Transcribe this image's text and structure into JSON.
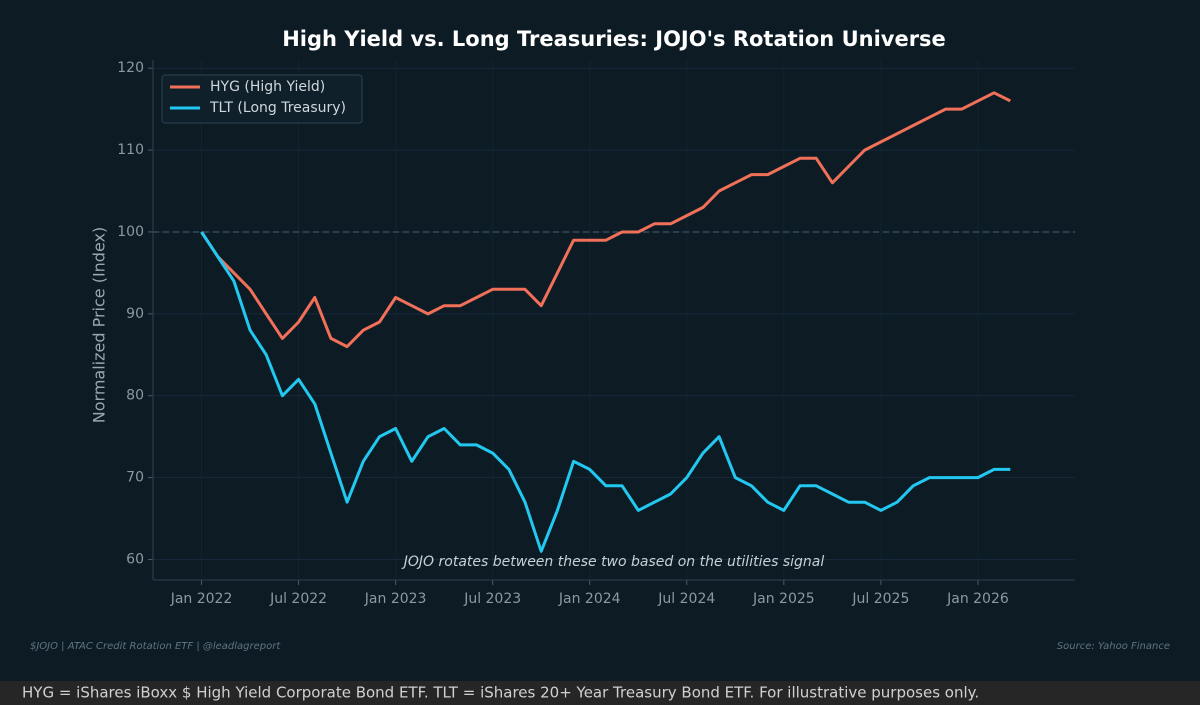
{
  "chart_data": {
    "type": "line",
    "title": "High Yield vs. Long Treasuries: JOJO's Rotation Universe",
    "y_label": "Normalized Price (Index)",
    "annotation": "JOJO rotates between these two based on the utilities signal",
    "footer_left": "$JOJO  |  ATAC Credit Rotation ETF  |  @leadlagreport",
    "source": "Source: Yahoo Finance",
    "disclaimer": "HYG = iShares iBoxx $ High Yield Corporate Bond ETF. TLT = iShares 20+ Year Treasury Bond ETF. For illustrative purposes only.",
    "x": [
      "2022-01",
      "2022-02",
      "2022-03",
      "2022-04",
      "2022-05",
      "2022-06",
      "2022-07",
      "2022-08",
      "2022-09",
      "2022-10",
      "2022-11",
      "2022-12",
      "2023-01",
      "2023-02",
      "2023-03",
      "2023-04",
      "2023-05",
      "2023-06",
      "2023-07",
      "2023-08",
      "2023-09",
      "2023-10",
      "2023-11",
      "2023-12",
      "2024-01",
      "2024-02",
      "2024-03",
      "2024-04",
      "2024-05",
      "2024-06",
      "2024-07",
      "2024-08",
      "2024-09",
      "2024-10",
      "2024-11",
      "2024-12",
      "2025-01",
      "2025-02",
      "2025-03",
      "2025-04",
      "2025-05",
      "2025-06",
      "2025-07",
      "2025-08",
      "2025-09",
      "2025-10",
      "2025-11",
      "2025-12",
      "2026-01",
      "2026-02",
      "2026-03"
    ],
    "series": [
      {
        "name": "HYG (High Yield)",
        "color": "#f0705a",
        "values": [
          100,
          97,
          95,
          93,
          90,
          87,
          89,
          92,
          87,
          86,
          88,
          89,
          92,
          91,
          90,
          91,
          91,
          92,
          93,
          93,
          93,
          91,
          95,
          99,
          99,
          99,
          100,
          100,
          101,
          101,
          102,
          103,
          105,
          106,
          107,
          107,
          108,
          109,
          109,
          106,
          108,
          110,
          111,
          112,
          113,
          114,
          115,
          115,
          116,
          117,
          116
        ]
      },
      {
        "name": "TLT (Long Treasury)",
        "color": "#22c8f0",
        "values": [
          100,
          97,
          94,
          88,
          85,
          80,
          82,
          79,
          73,
          67,
          72,
          75,
          76,
          72,
          75,
          76,
          74,
          74,
          73,
          71,
          67,
          61,
          66,
          72,
          71,
          69,
          69,
          66,
          67,
          68,
          70,
          73,
          75,
          70,
          69,
          67,
          66,
          69,
          69,
          68,
          67,
          67,
          66,
          67,
          69,
          70,
          70,
          70,
          70,
          71,
          71
        ]
      }
    ],
    "xlim": [
      "2021-10",
      "2026-07"
    ],
    "xticks": [
      {
        "value": "2022-01",
        "label": "Jan 2022"
      },
      {
        "value": "2022-07",
        "label": "Jul 2022"
      },
      {
        "value": "2023-01",
        "label": "Jan 2023"
      },
      {
        "value": "2023-07",
        "label": "Jul 2023"
      },
      {
        "value": "2024-01",
        "label": "Jan 2024"
      },
      {
        "value": "2024-07",
        "label": "Jul 2024"
      },
      {
        "value": "2025-01",
        "label": "Jan 2025"
      },
      {
        "value": "2025-07",
        "label": "Jul 2025"
      },
      {
        "value": "2026-01",
        "label": "Jan 2026"
      }
    ],
    "ylim": [
      57.5,
      121
    ],
    "yticks": [
      60,
      70,
      80,
      90,
      100,
      110,
      120
    ],
    "reference_line": 100,
    "grid": true,
    "legend": "upper-left"
  }
}
